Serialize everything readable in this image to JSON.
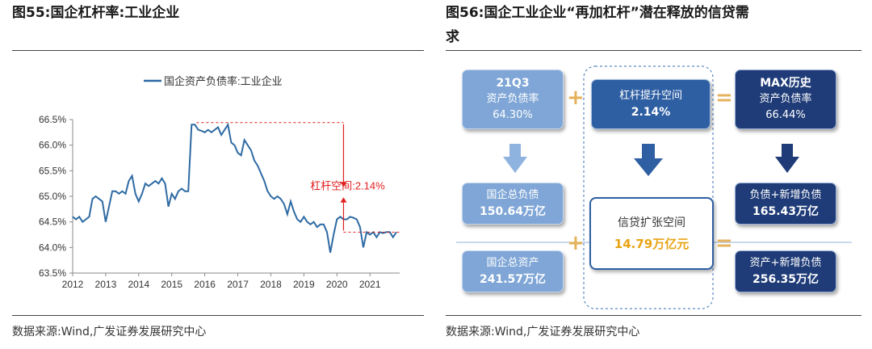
{
  "left": {
    "title": "图55:国企杠杆率:工业企业",
    "legend": "国企资产负债率:工业企业",
    "annotation": "杠杆空间:2.14%",
    "source": "数据来源:Wind,广发证券发展研究中心"
  },
  "right": {
    "title_line1": "图56:国企工业企业“再加杠杆”潜在释放的信贷需",
    "title_line2": "求",
    "source": "数据来源:Wind,广发证券发展研究中心",
    "boxes": {
      "q3_label": "21Q3",
      "q3_sub": "资产负债率",
      "q3_value": "64.30%",
      "lev_label": "杠杆提升空间",
      "lev_value": "2.14%",
      "max_label": "MAX历史",
      "max_sub": "资产负债率",
      "max_value": "66.44%",
      "debt_label": "国企总负债",
      "debt_value": "150.64万亿",
      "asset_label": "国企总资产",
      "asset_value": "241.57万亿",
      "credit_label": "信贷扩张空间",
      "credit_value": "14.79万亿元",
      "newdebt_label": "负债+新增负债",
      "newdebt_value": "165.43万亿",
      "newasset_label": "资产+新增负债",
      "newasset_value": "256.35万亿"
    },
    "ops": {
      "plus": "+",
      "equals": "="
    }
  },
  "colors": {
    "line": "#2e6aa3",
    "annotation": "#e02020",
    "accent": "#e5b25d"
  },
  "chart_data": {
    "type": "line",
    "title": "国企杠杆率:工业企业",
    "series": [
      {
        "name": "国企资产负债率:工业企业",
        "x": [
          2012.0,
          2012.1,
          2012.2,
          2012.3,
          2012.4,
          2012.5,
          2012.6,
          2012.7,
          2012.8,
          2012.9,
          2013.0,
          2013.1,
          2013.2,
          2013.3,
          2013.4,
          2013.5,
          2013.6,
          2013.7,
          2013.8,
          2013.9,
          2014.0,
          2014.1,
          2014.2,
          2014.3,
          2014.4,
          2014.5,
          2014.6,
          2014.7,
          2014.8,
          2014.9,
          2015.0,
          2015.1,
          2015.2,
          2015.3,
          2015.4,
          2015.5,
          2015.6,
          2015.7,
          2015.8,
          2015.9,
          2016.0,
          2016.1,
          2016.2,
          2016.3,
          2016.4,
          2016.5,
          2016.6,
          2016.7,
          2016.8,
          2016.9,
          2017.0,
          2017.1,
          2017.2,
          2017.3,
          2017.4,
          2017.5,
          2017.6,
          2017.7,
          2017.8,
          2017.9,
          2018.0,
          2018.1,
          2018.2,
          2018.3,
          2018.4,
          2018.5,
          2018.6,
          2018.7,
          2018.8,
          2018.9,
          2019.0,
          2019.1,
          2019.2,
          2019.3,
          2019.4,
          2019.5,
          2019.6,
          2019.7,
          2019.8,
          2019.9,
          2020.0,
          2020.1,
          2020.2,
          2020.3,
          2020.4,
          2020.5,
          2020.6,
          2020.7,
          2020.8,
          2020.9,
          2021.0,
          2021.1,
          2021.2,
          2021.3,
          2021.4,
          2021.5,
          2021.6,
          2021.7,
          2021.8
        ],
        "values": [
          64.6,
          64.55,
          64.6,
          64.5,
          64.55,
          64.6,
          64.95,
          65.0,
          64.95,
          64.9,
          64.5,
          64.8,
          65.1,
          65.1,
          65.05,
          65.1,
          65.05,
          65.3,
          65.4,
          65.05,
          64.9,
          65.05,
          65.25,
          65.2,
          65.25,
          65.3,
          65.25,
          65.35,
          65.25,
          64.8,
          65.05,
          64.95,
          65.1,
          65.15,
          65.1,
          65.1,
          66.4,
          66.4,
          66.3,
          66.28,
          66.25,
          66.3,
          66.25,
          66.3,
          66.35,
          66.2,
          66.3,
          66.4,
          66.05,
          66.0,
          65.85,
          65.8,
          66.1,
          66.0,
          65.9,
          65.7,
          65.6,
          65.45,
          65.3,
          65.1,
          65.0,
          64.95,
          65.0,
          64.95,
          64.85,
          64.65,
          64.9,
          64.7,
          64.55,
          64.5,
          64.6,
          64.5,
          64.45,
          64.5,
          64.4,
          64.45,
          64.45,
          64.3,
          63.9,
          64.25,
          64.55,
          64.6,
          64.55,
          64.55,
          64.6,
          64.58,
          64.55,
          64.4,
          64.0,
          64.3,
          64.25,
          64.3,
          64.2,
          64.3,
          64.28,
          64.3,
          64.3,
          64.2,
          64.3
        ]
      }
    ],
    "xlim": [
      2012,
      2021.9
    ],
    "ylim": [
      63.5,
      66.5
    ],
    "xticks": [
      "2012",
      "2013",
      "2014",
      "2015",
      "2016",
      "2017",
      "2018",
      "2019",
      "2020",
      "2021"
    ],
    "yticks": [
      "63.5%",
      "64.0%",
      "64.5%",
      "65.0%",
      "65.5%",
      "66.0%",
      "66.5%"
    ],
    "max_value": 66.44,
    "current_value": 64.3,
    "gap": 2.14,
    "legend_position": "top-center",
    "grid": false
  }
}
